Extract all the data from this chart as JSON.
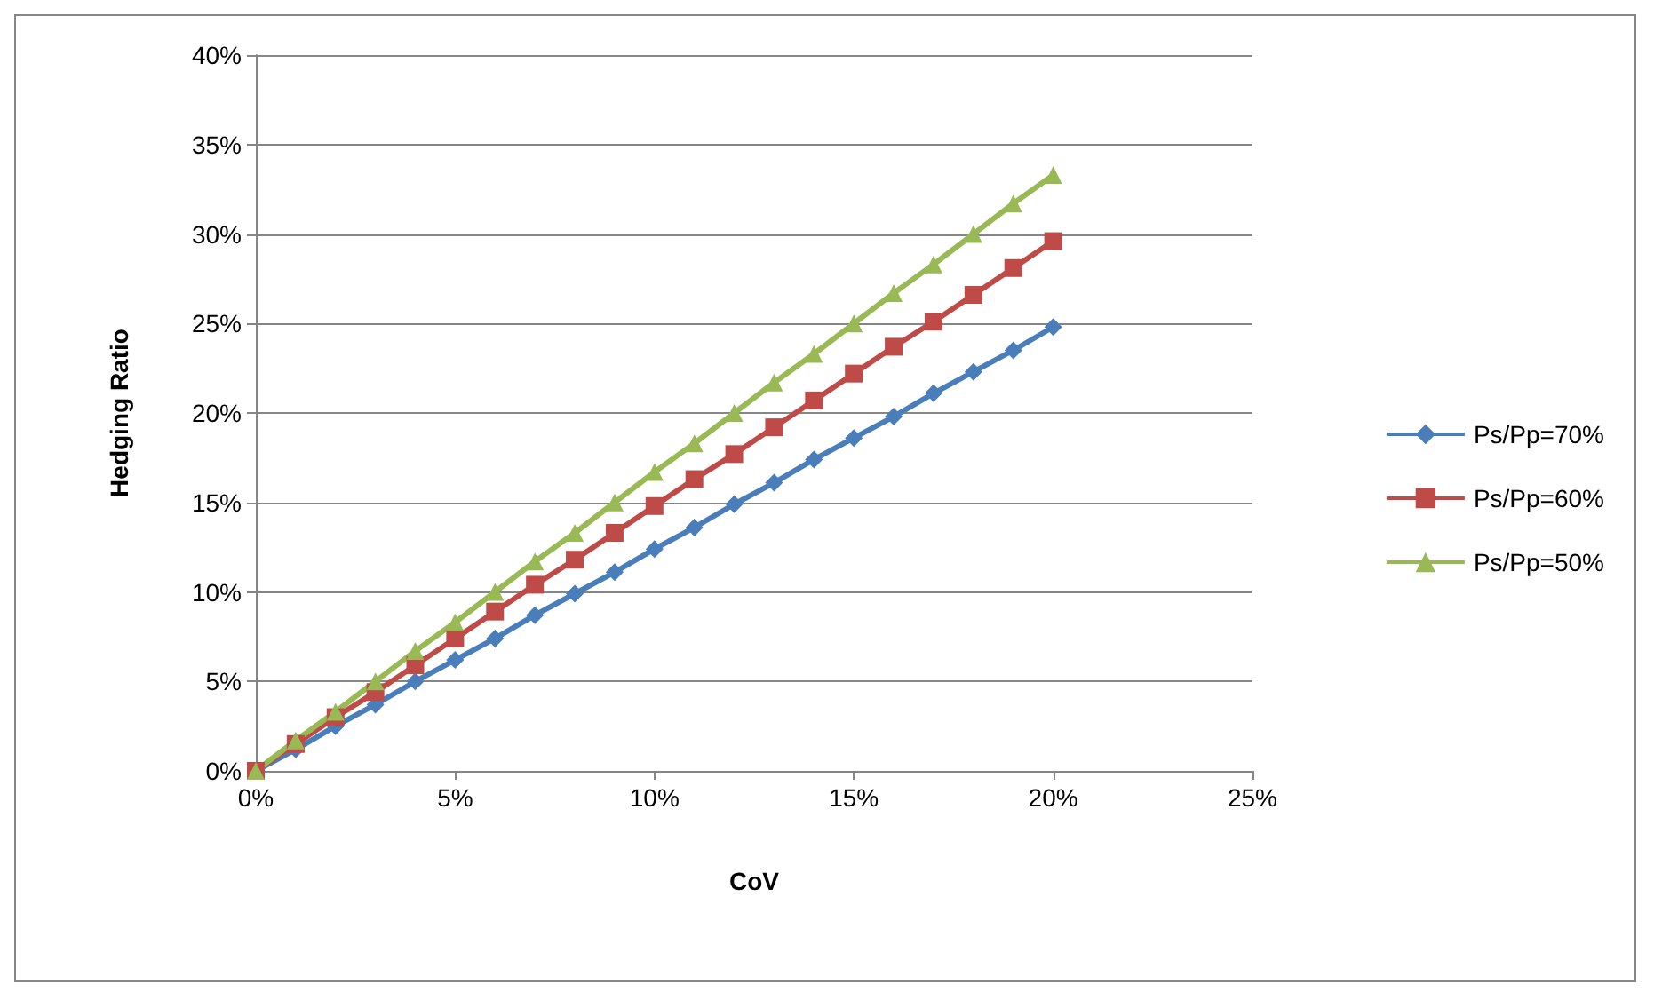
{
  "chart_data": {
    "type": "line",
    "xlabel": "CoV",
    "ylabel": "Hedging Ratio",
    "x": [
      0,
      1,
      2,
      3,
      4,
      5,
      6,
      7,
      8,
      9,
      10,
      11,
      12,
      13,
      14,
      15,
      16,
      17,
      18,
      19,
      20
    ],
    "series": [
      {
        "name": "Ps/Pp=70%",
        "color": "#4a7ebb",
        "marker": "diamond",
        "values": [
          0,
          1.2,
          2.5,
          3.7,
          5.0,
          6.2,
          7.4,
          8.7,
          9.9,
          11.1,
          12.4,
          13.6,
          14.9,
          16.1,
          17.4,
          18.6,
          19.8,
          21.1,
          22.3,
          23.5,
          24.8
        ]
      },
      {
        "name": "Ps/Pp=60%",
        "color": "#be4b48",
        "marker": "square",
        "values": [
          0,
          1.5,
          3.0,
          4.4,
          5.9,
          7.4,
          8.9,
          10.4,
          11.8,
          13.3,
          14.8,
          16.3,
          17.7,
          19.2,
          20.7,
          22.2,
          23.7,
          25.1,
          26.6,
          28.1,
          29.6
        ]
      },
      {
        "name": "Ps/Pp=50%",
        "color": "#98b954",
        "marker": "triangle",
        "values": [
          0,
          1.7,
          3.3,
          5.0,
          6.7,
          8.3,
          10.0,
          11.7,
          13.3,
          15.0,
          16.7,
          18.3,
          20.0,
          21.7,
          23.3,
          25.0,
          26.7,
          28.3,
          30.0,
          31.7,
          33.3
        ]
      }
    ],
    "xlim": [
      0,
      25
    ],
    "xticks": [
      {
        "value": 0,
        "label": "0%"
      },
      {
        "value": 5,
        "label": "5%"
      },
      {
        "value": 10,
        "label": "10%"
      },
      {
        "value": 15,
        "label": "15%"
      },
      {
        "value": 20,
        "label": "20%"
      },
      {
        "value": 25,
        "label": "25%"
      }
    ],
    "ylim": [
      0,
      40
    ],
    "yticks": [
      {
        "value": 0,
        "label": "0%"
      },
      {
        "value": 5,
        "label": "5%"
      },
      {
        "value": 10,
        "label": "10%"
      },
      {
        "value": 15,
        "label": "15%"
      },
      {
        "value": 20,
        "label": "20%"
      },
      {
        "value": 25,
        "label": "25%"
      },
      {
        "value": 30,
        "label": "30%"
      },
      {
        "value": 35,
        "label": "35%"
      },
      {
        "value": 40,
        "label": "40%"
      }
    ],
    "grid": "y",
    "legend": "right",
    "line_style": "solid"
  }
}
